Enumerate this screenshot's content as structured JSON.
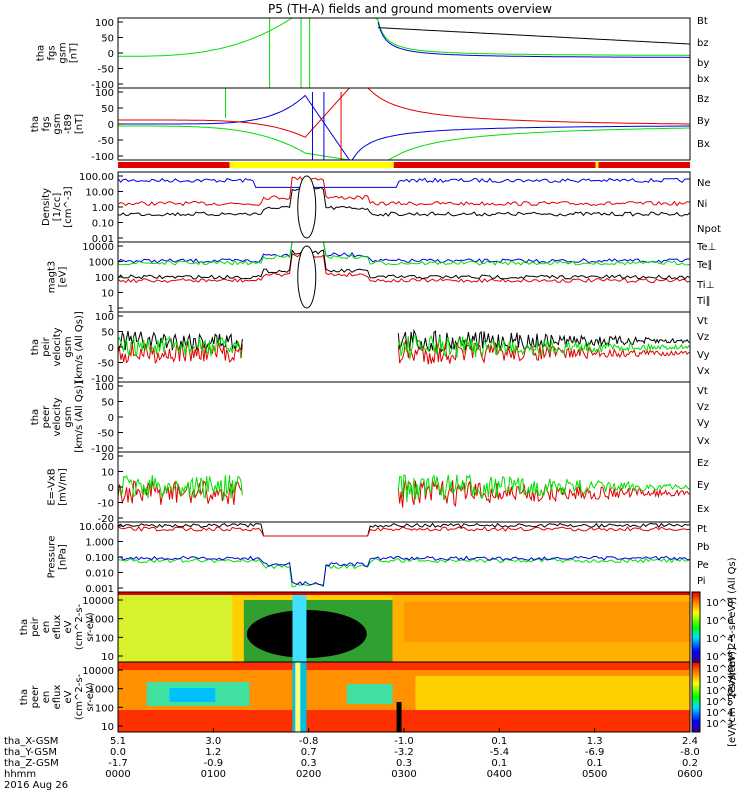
{
  "title": "P5 (TH-A) fields and ground moments overview",
  "colors": {
    "black": "#000000",
    "red": "#e00000",
    "green": "#00e000",
    "blue": "#0000e0",
    "yellow": "#ffff00"
  },
  "chart_data": [
    {
      "id": "fgs",
      "type": "line",
      "ylabel_lines": [
        "tha",
        "fgs",
        "gsm",
        "[nT]"
      ],
      "ylim": [
        -100,
        100
      ],
      "yticks": [
        "100",
        "50",
        "0",
        "-50",
        "-100"
      ],
      "series": [
        {
          "name": "Bt",
          "color": "black"
        },
        {
          "name": "bz",
          "color": "red"
        },
        {
          "name": "by",
          "color": "green"
        },
        {
          "name": "bx",
          "color": "blue"
        }
      ]
    },
    {
      "id": "fgs_dip",
      "type": "line",
      "ylabel_lines": [
        "tha",
        "fgs",
        "gsm",
        "-t89",
        "[nT]"
      ],
      "ylim": [
        -120,
        120
      ],
      "yticks": [
        "100",
        "50",
        "0",
        "-50",
        "-100"
      ],
      "series": [
        {
          "name": "Bz",
          "color": "red"
        },
        {
          "name": "By",
          "color": "green"
        },
        {
          "name": "Bx",
          "color": "blue"
        }
      ]
    },
    {
      "id": "density",
      "type": "line",
      "ylabel_lines": [
        "Density",
        "[1/cc]",
        "[cm^-3]"
      ],
      "yscale": "log",
      "yticks": [
        "100.00",
        "10.00",
        "1.00",
        "0.10",
        "0.01"
      ],
      "series": [
        {
          "name": "Ne",
          "color": "red"
        },
        {
          "name": "Ni",
          "color": "black"
        },
        {
          "name": "Npot",
          "color": "blue"
        }
      ]
    },
    {
      "id": "temp",
      "type": "line",
      "ylabel_lines": [
        "magt3",
        "[eV]"
      ],
      "yscale": "log",
      "yticks": [
        "10000",
        "1000",
        "100",
        "10",
        "1"
      ],
      "series": [
        {
          "name": "Te⊥",
          "color": "red"
        },
        {
          "name": "Te∥",
          "color": "black"
        },
        {
          "name": "Ti⊥",
          "color": "blue"
        },
        {
          "name": "Ti∥",
          "color": "green"
        }
      ]
    },
    {
      "id": "peir_vel",
      "type": "line",
      "ylabel_lines": [
        "tha",
        "peir",
        "velocity",
        "gsm",
        "[km/s (All Qs)]"
      ],
      "ylim": [
        -100,
        100
      ],
      "yticks": [
        "100",
        "50",
        "0",
        "-50",
        "-100"
      ],
      "series": [
        {
          "name": "Vt",
          "color": "black"
        },
        {
          "name": "Vz",
          "color": "red"
        },
        {
          "name": "Vy",
          "color": "green"
        },
        {
          "name": "Vx",
          "color": "blue"
        }
      ]
    },
    {
      "id": "peer_vel",
      "type": "line",
      "ylabel_lines": [
        "tha",
        "peer",
        "velocity",
        "gsm",
        "[km/s (All Qs)]"
      ],
      "ylim": [
        -100,
        100
      ],
      "yticks": [
        "100",
        "50",
        "0",
        "-50",
        "-100"
      ],
      "series": [
        {
          "name": "Vt",
          "color": "black"
        },
        {
          "name": "Vz",
          "color": "red"
        },
        {
          "name": "Vy",
          "color": "green"
        },
        {
          "name": "Vx",
          "color": "blue"
        }
      ]
    },
    {
      "id": "efield",
      "type": "line",
      "ylabel_lines": [
        "E=-VxB",
        "[mV/m]"
      ],
      "ylim": [
        -20,
        20
      ],
      "yticks": [
        "20",
        "10",
        "0",
        "-10",
        "-20"
      ],
      "series": [
        {
          "name": "Ez",
          "color": "red"
        },
        {
          "name": "Ey",
          "color": "green"
        },
        {
          "name": "Ex",
          "color": "blue"
        }
      ]
    },
    {
      "id": "pressure",
      "type": "line",
      "ylabel_lines": [
        "Pressure",
        "[nPa]"
      ],
      "yscale": "log",
      "yticks": [
        "10.000",
        "1.000",
        "0.100",
        "0.010",
        "0.001"
      ],
      "series": [
        {
          "name": "Pt",
          "color": "black"
        },
        {
          "name": "Pb",
          "color": "red"
        },
        {
          "name": "Pe",
          "color": "green"
        },
        {
          "name": "Pi",
          "color": "blue"
        }
      ]
    },
    {
      "id": "peir_spec",
      "type": "heatmap",
      "ylabel_lines": [
        "tha",
        "peir",
        "en",
        "eflux",
        "eV",
        "(cm^2-s-",
        "sr-eV)"
      ],
      "yscale": "log",
      "yticks": [
        "10000",
        "1000",
        "100",
        "10"
      ],
      "colorbar_label": "[eV/(cm^2-s-sr-eV)] (All Qs)",
      "colorbar_ticks": [
        "10^8",
        "10^6",
        "10^4",
        "10^2"
      ]
    },
    {
      "id": "peer_spec",
      "type": "heatmap",
      "ylabel_lines": [
        "tha",
        "peer",
        "en",
        "eflux",
        "eV",
        "(cm^2-s-",
        "sr-eV)"
      ],
      "yscale": "log",
      "yticks": [
        "10000",
        "1000",
        "100",
        "10"
      ],
      "colorbar_label": "[eV/(cm^2-s-sr-eV)]",
      "colorbar_ticks": [
        "10^8",
        "10^7",
        "10^6",
        "10^5",
        "10^4",
        "10^3"
      ]
    }
  ],
  "xaxis": {
    "rows": [
      {
        "label": "tha_X-GSM",
        "values": [
          "5.1",
          "3.0",
          "-0.8",
          "-1.0",
          "0.1",
          "1.3",
          "2.4"
        ]
      },
      {
        "label": "tha_Y-GSM",
        "values": [
          "0.0",
          "1.2",
          "0.7",
          "-3.2",
          "-5.4",
          "-6.9",
          "-8.0"
        ]
      },
      {
        "label": "tha_Z-GSM",
        "values": [
          "-1.7",
          "-0.9",
          "0.3",
          "0.3",
          "0.1",
          "0.1",
          "0.2"
        ]
      },
      {
        "label": "hhmm",
        "values": [
          "0000",
          "0100",
          "0200",
          "0300",
          "0400",
          "0500",
          "0600"
        ]
      }
    ],
    "date": "2016 Aug 26"
  },
  "mode_bar": {
    "colors": [
      "red",
      "yellow",
      "red",
      "yellow",
      "red"
    ]
  }
}
